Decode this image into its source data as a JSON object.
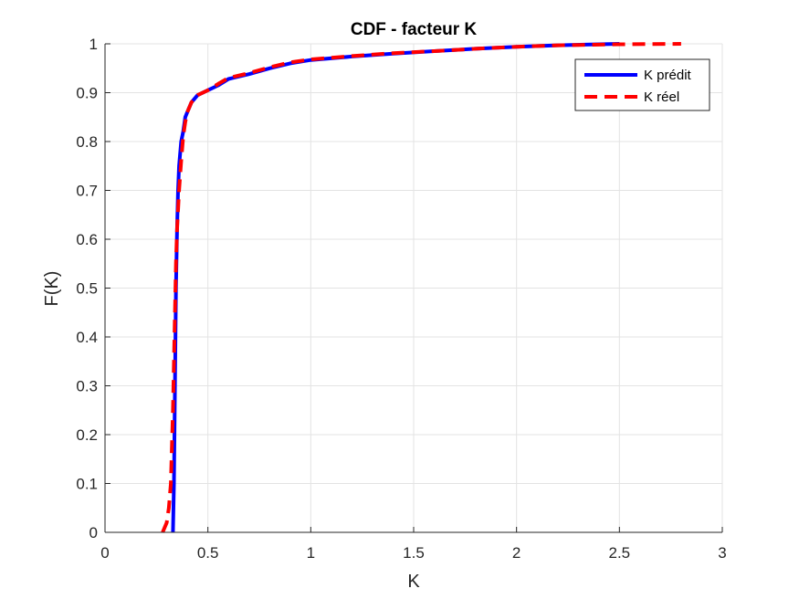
{
  "chart_data": {
    "type": "line",
    "title": "CDF - facteur K",
    "xlabel": "K",
    "ylabel": "F(K)",
    "xlim": [
      0,
      3
    ],
    "ylim": [
      0,
      1
    ],
    "xticks": [
      0,
      0.5,
      1,
      1.5,
      2,
      2.5,
      3
    ],
    "xtick_labels": [
      "0",
      "0.5",
      "1",
      "1.5",
      "2",
      "2.5",
      "3"
    ],
    "yticks": [
      0,
      0.1,
      0.2,
      0.3,
      0.4,
      0.5,
      0.6,
      0.7,
      0.8,
      0.9,
      1
    ],
    "ytick_labels": [
      "0",
      "0.1",
      "0.2",
      "0.3",
      "0.4",
      "0.5",
      "0.6",
      "0.7",
      "0.8",
      "0.9",
      "1"
    ],
    "grid": true,
    "legend_position": "top-right",
    "series": [
      {
        "name": "K prédit",
        "color": "#0000ff",
        "style": "solid",
        "x": [
          0.33,
          0.335,
          0.34,
          0.345,
          0.35,
          0.355,
          0.36,
          0.37,
          0.38,
          0.39,
          0.4,
          0.42,
          0.45,
          0.5,
          0.55,
          0.6,
          0.7,
          0.8,
          0.9,
          1.0,
          1.2,
          1.4,
          1.6,
          1.8,
          2.0,
          2.2,
          2.5
        ],
        "y": [
          0.0,
          0.1,
          0.3,
          0.5,
          0.62,
          0.7,
          0.75,
          0.8,
          0.82,
          0.85,
          0.86,
          0.88,
          0.895,
          0.905,
          0.915,
          0.928,
          0.938,
          0.95,
          0.96,
          0.967,
          0.974,
          0.98,
          0.985,
          0.99,
          0.994,
          0.997,
          1.0
        ]
      },
      {
        "name": "K réel",
        "color": "#ff0000",
        "style": "dashed",
        "x": [
          0.28,
          0.3,
          0.31,
          0.32,
          0.33,
          0.34,
          0.345,
          0.35,
          0.36,
          0.37,
          0.38,
          0.39,
          0.4,
          0.42,
          0.45,
          0.5,
          0.55,
          0.6,
          0.7,
          0.8,
          0.9,
          1.0,
          1.2,
          1.4,
          1.6,
          1.8,
          2.0,
          2.2,
          2.5,
          2.8
        ],
        "y": [
          0.0,
          0.02,
          0.05,
          0.1,
          0.25,
          0.45,
          0.55,
          0.62,
          0.7,
          0.76,
          0.81,
          0.84,
          0.86,
          0.88,
          0.895,
          0.905,
          0.918,
          0.93,
          0.94,
          0.952,
          0.962,
          0.968,
          0.975,
          0.981,
          0.985,
          0.99,
          0.994,
          0.997,
          0.999,
          1.0
        ]
      }
    ]
  }
}
